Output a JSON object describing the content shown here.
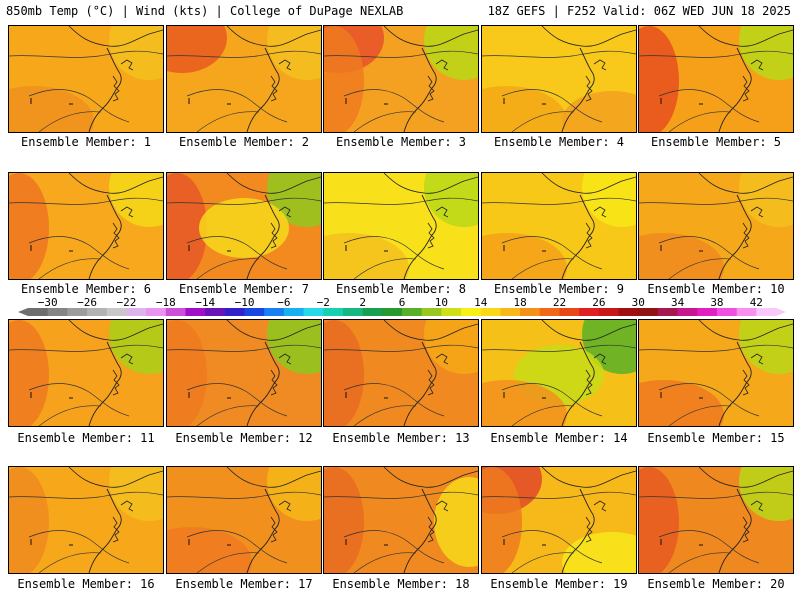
{
  "header": {
    "left": "850mb Temp (°C) | Wind (kts) | College of DuPage NEXLAB",
    "right": "18Z GEFS | F252 Valid: 06Z WED JUN 18 2025"
  },
  "members": [
    {
      "label": "Ensemble Member: 1",
      "base": "#f7a81a",
      "accents": [
        {
          "c": "#f09020",
          "p": "sw"
        },
        {
          "c": "#f5c020",
          "p": "ne"
        }
      ]
    },
    {
      "label": "Ensemble Member: 2",
      "base": "#f6a61c",
      "accents": [
        {
          "c": "#e85a20",
          "p": "nw"
        },
        {
          "c": "#f5c020",
          "p": "ne"
        }
      ]
    },
    {
      "label": "Ensemble Member: 3",
      "base": "#f4a020",
      "accents": [
        {
          "c": "#e8502a",
          "p": "nw"
        },
        {
          "c": "#b8d818",
          "p": "ne"
        },
        {
          "c": "#f07a20",
          "p": "w"
        }
      ]
    },
    {
      "label": "Ensemble Member: 4",
      "base": "#f8c81a",
      "accents": [
        {
          "c": "#f5a818",
          "p": "sw"
        },
        {
          "c": "#f3a020",
          "p": "se"
        }
      ]
    },
    {
      "label": "Ensemble Member: 5",
      "base": "#f5a018",
      "accents": [
        {
          "c": "#e85020",
          "p": "w"
        },
        {
          "c": "#b8d818",
          "p": "ne"
        }
      ]
    },
    {
      "label": "Ensemble Member: 6",
      "base": "#f7a81c",
      "accents": [
        {
          "c": "#ee7620",
          "p": "w"
        },
        {
          "c": "#f5d818",
          "p": "ne"
        }
      ]
    },
    {
      "label": "Ensemble Member: 7",
      "base": "#f28a20",
      "accents": [
        {
          "c": "#e85828",
          "p": "w"
        },
        {
          "c": "#90c820",
          "p": "ne"
        },
        {
          "c": "#f8d81c",
          "p": "c"
        }
      ]
    },
    {
      "label": "Ensemble Member: 8",
      "base": "#f8e01a",
      "accents": [
        {
          "c": "#b8d818",
          "p": "ne"
        },
        {
          "c": "#f5c020",
          "p": "sw"
        }
      ]
    },
    {
      "label": "Ensemble Member: 9",
      "base": "#f7c818",
      "accents": [
        {
          "c": "#f5a01a",
          "p": "sw"
        },
        {
          "c": "#f8e818",
          "p": "ne"
        }
      ]
    },
    {
      "label": "Ensemble Member: 10",
      "base": "#f5a81a",
      "accents": [
        {
          "c": "#f5c020",
          "p": "ne"
        },
        {
          "c": "#ee8a20",
          "p": "sw"
        }
      ]
    },
    {
      "label": "Ensemble Member: 11",
      "base": "#f6a21c",
      "accents": [
        {
          "c": "#ee7a20",
          "p": "w"
        },
        {
          "c": "#a8d018",
          "p": "ne"
        }
      ]
    },
    {
      "label": "Ensemble Member: 12",
      "base": "#f08a22",
      "accents": [
        {
          "c": "#ee7a20",
          "p": "w"
        },
        {
          "c": "#8cc81e",
          "p": "ne"
        }
      ]
    },
    {
      "label": "Ensemble Member: 13",
      "base": "#f08a20",
      "accents": [
        {
          "c": "#e86a22",
          "p": "w"
        },
        {
          "c": "#f6a818",
          "p": "ne"
        }
      ]
    },
    {
      "label": "Ensemble Member: 14",
      "base": "#f5c018",
      "accents": [
        {
          "c": "#58b028",
          "p": "ne"
        },
        {
          "c": "#c8dc18",
          "p": "c"
        },
        {
          "c": "#f2901e",
          "p": "sw"
        }
      ]
    },
    {
      "label": "Ensemble Member: 15",
      "base": "#f5a81a",
      "accents": [
        {
          "c": "#ee7a20",
          "p": "sw"
        },
        {
          "c": "#b8d818",
          "p": "ne"
        }
      ]
    },
    {
      "label": "Ensemble Member: 16",
      "base": "#f7a81a",
      "accents": [
        {
          "c": "#f5c020",
          "p": "ne"
        },
        {
          "c": "#ee8a20",
          "p": "w"
        }
      ]
    },
    {
      "label": "Ensemble Member: 17",
      "base": "#f2901e",
      "accents": [
        {
          "c": "#f5b818",
          "p": "ne"
        },
        {
          "c": "#f07a20",
          "p": "sw"
        }
      ]
    },
    {
      "label": "Ensemble Member: 18",
      "base": "#f08a20",
      "accents": [
        {
          "c": "#e86a22",
          "p": "w"
        },
        {
          "c": "#f8d81c",
          "p": "e"
        }
      ]
    },
    {
      "label": "Ensemble Member: 19",
      "base": "#f7b81a",
      "accents": [
        {
          "c": "#e04828",
          "p": "nw"
        },
        {
          "c": "#ee7a20",
          "p": "w"
        },
        {
          "c": "#f8e81c",
          "p": "se"
        }
      ]
    },
    {
      "label": "Ensemble Member: 20",
      "base": "#f08820",
      "accents": [
        {
          "c": "#e85a22",
          "p": "w"
        },
        {
          "c": "#b8d818",
          "p": "ne"
        }
      ]
    }
  ],
  "colorbar": {
    "labels": [
      "−30",
      "−26",
      "−22",
      "−18",
      "−14",
      "−10",
      "−6",
      "−2",
      "2",
      "6",
      "10",
      "14",
      "18",
      "22",
      "26",
      "30",
      "34",
      "38",
      "42"
    ],
    "colors": [
      "#6e6e6e",
      "#858585",
      "#9c9c9c",
      "#b3b3b3",
      "#c8c8c8",
      "#dcb4ec",
      "#e894f0",
      "#cc50d8",
      "#a010c8",
      "#6a14b8",
      "#3420c8",
      "#1848e0",
      "#1880f0",
      "#18b0f0",
      "#28d8e8",
      "#18d0b0",
      "#18b880",
      "#18a050",
      "#289830",
      "#58b028",
      "#98c820",
      "#d0e018",
      "#f8f018",
      "#f8d818",
      "#f8b818",
      "#f59018",
      "#f06818",
      "#e84818",
      "#e02020",
      "#c81818",
      "#a01010",
      "#901414",
      "#a81850",
      "#c81890",
      "#e020c0",
      "#f050e0",
      "#f890f0",
      "#f8c8f8"
    ]
  }
}
